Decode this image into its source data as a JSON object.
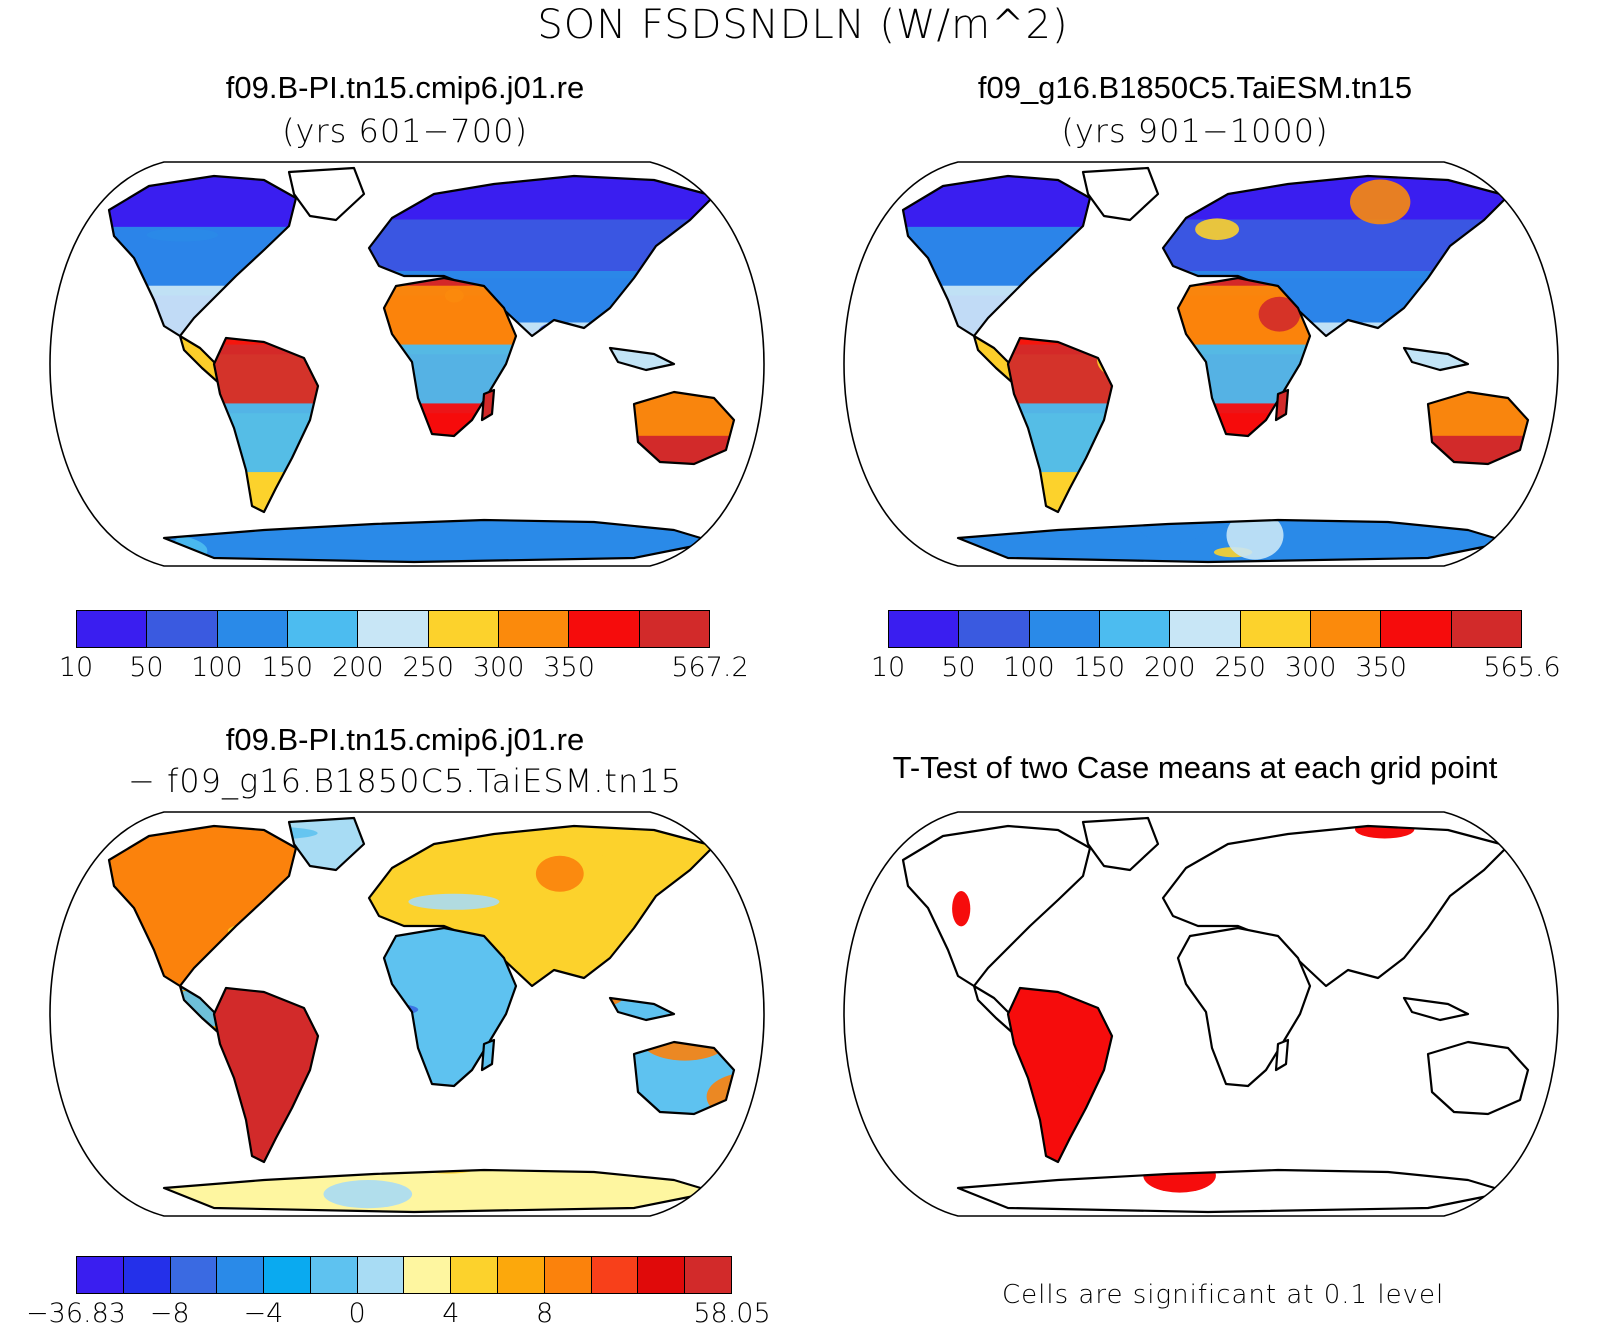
{
  "main_title": "SON FSDSNDLN (W/m^2)",
  "panels": {
    "top_left": {
      "title": "f09.B-PI.tn15.cmip6.j01.re",
      "subtitle": "(yrs 601−700)"
    },
    "top_right": {
      "title": "f09_g16.B1850C5.TaiESM.tn15",
      "subtitle": "(yrs 901−1000)"
    },
    "bottom_left": {
      "title": "f09.B-PI.tn15.cmip6.j01.re",
      "subtitle": "− f09_g16.B1850C5.TaiESM.tn15"
    },
    "bottom_right": {
      "title": "T-Test of two Case means at each grid point"
    }
  },
  "colorbars": {
    "case1": {
      "colors": [
        "#3a1ef0",
        "#3a5ae0",
        "#2a8ae8",
        "#4cbcf0",
        "#c8e6f6",
        "#fcd22c",
        "#fb8a0c",
        "#f60c0c",
        "#d22a2a"
      ],
      "labels": [
        "10",
        "50",
        "100",
        "150",
        "200",
        "250",
        "300",
        "350",
        "567.2"
      ]
    },
    "case2": {
      "colors": [
        "#3a1ef0",
        "#3a5ae0",
        "#2a8ae8",
        "#4cbcf0",
        "#c8e6f6",
        "#fcd22c",
        "#fb8a0c",
        "#f60c0c",
        "#d22a2a"
      ],
      "labels": [
        "10",
        "50",
        "100",
        "150",
        "200",
        "250",
        "300",
        "350",
        "565.6"
      ]
    },
    "diff": {
      "colors": [
        "#3a1ef0",
        "#2430ea",
        "#3a6ae2",
        "#2a8ae8",
        "#0aaaf0",
        "#5ec2f0",
        "#a8dcf4",
        "#fef6a0",
        "#fcd22c",
        "#fca80c",
        "#fb820c",
        "#f8401a",
        "#e00a0a",
        "#d22a2a"
      ],
      "labels": [
        "−36.83",
        "−8",
        "−4",
        "0",
        "4",
        "8",
        "58.05"
      ]
    }
  },
  "significance_note": "Cells are significant at 0.1 level"
}
